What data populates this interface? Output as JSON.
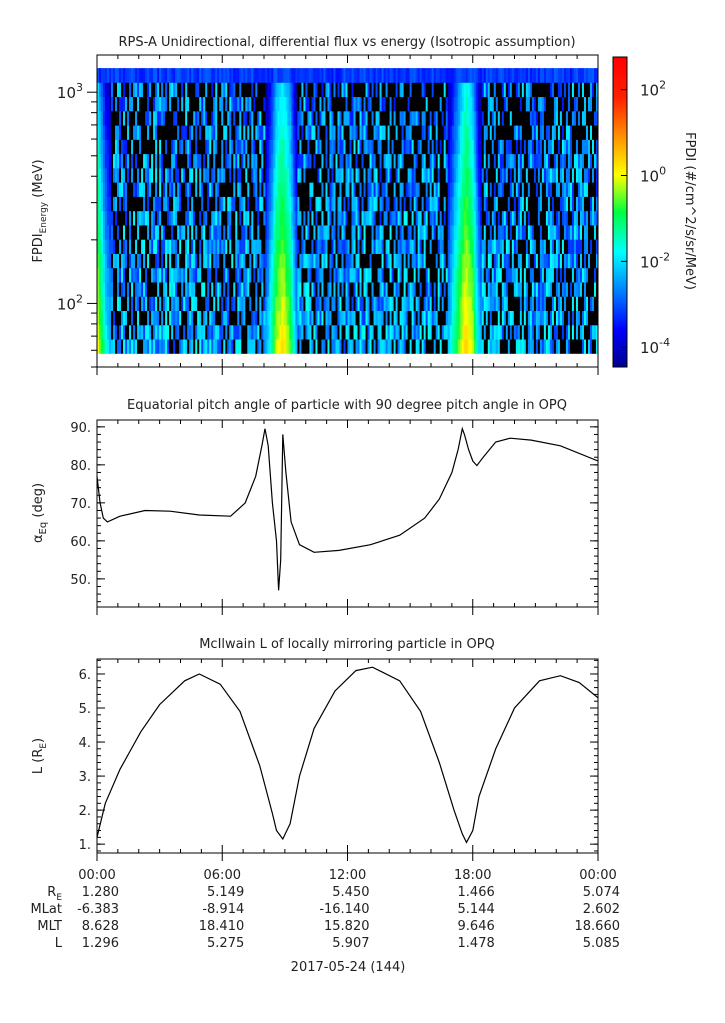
{
  "chart_data": [
    {
      "type": "heatmap",
      "title": "RPS-A Unidirectional, differential flux vs energy (Isotropic assumption)",
      "ylabel_main": "FPDI",
      "ylabel_sub": "Energy",
      "ylabel_unit": "(MeV)",
      "yscale": "log",
      "ylim": [
        50,
        1500
      ],
      "yticks": [
        {
          "value": 100,
          "base": "10",
          "exp": "2"
        },
        {
          "value": 1000,
          "base": "10",
          "exp": "3"
        }
      ],
      "energy_range": [
        58,
        1300
      ],
      "xlim": [
        0,
        24
      ],
      "colorbar": {
        "label": "FPDI (#/cm^2/s/sr/MeV)",
        "log_range": [
          -4.46,
          2.76
        ],
        "ticks": [
          {
            "base": "10",
            "exp": "2",
            "log": 2
          },
          {
            "base": "10",
            "exp": "0",
            "log": 0
          },
          {
            "base": "10",
            "exp": "-2",
            "log": -2
          },
          {
            "base": "10",
            "exp": "-4",
            "log": -4
          }
        ]
      }
    },
    {
      "type": "line",
      "title": "Equatorial pitch angle of particle with 90 degree pitch angle in OPQ",
      "ylabel_main": "α",
      "ylabel_sub": "Eq",
      "ylabel_unit": "(deg)",
      "xlim": [
        0,
        24
      ],
      "ylim": [
        42.6,
        91.8
      ],
      "yticks": [
        {
          "value": 50,
          "label": "50."
        },
        {
          "value": 60,
          "label": "60."
        },
        {
          "value": 70,
          "label": "70."
        },
        {
          "value": 80,
          "label": "80."
        },
        {
          "value": 90,
          "label": "90."
        }
      ],
      "x": [
        0,
        0.15,
        0.3,
        0.5,
        1.1,
        2.3,
        3.5,
        4.9,
        6.4,
        7.1,
        7.6,
        7.9,
        8.05,
        8.2,
        8.4,
        8.6,
        8.7,
        8.8,
        8.9,
        9.05,
        9.3,
        9.7,
        10.4,
        11.6,
        13.1,
        14.5,
        15.7,
        16.4,
        17.0,
        17.3,
        17.5,
        17.6,
        17.8,
        18.0,
        18.2,
        18.5,
        19.1,
        19.8,
        20.8,
        22.2,
        24
      ],
      "y": [
        77,
        70,
        66,
        65,
        66.5,
        68,
        67.8,
        66.8,
        66.5,
        70,
        77,
        85,
        89.5,
        85,
        70,
        60,
        47,
        55,
        88,
        78,
        65,
        59,
        57,
        57.5,
        59,
        61.5,
        66,
        71,
        78,
        84,
        89.5,
        88,
        84,
        81,
        79.8,
        82,
        86,
        87,
        86.5,
        85,
        81
      ]
    },
    {
      "type": "line",
      "title": "McIlwain L of locally mirroring particle in OPQ",
      "ylabel_main": "L (R",
      "ylabel_sub": "E",
      "ylabel_unit": ")",
      "xlim": [
        0,
        24
      ],
      "ylim": [
        0.74,
        6.44
      ],
      "yticks": [
        {
          "value": 1,
          "label": "1."
        },
        {
          "value": 2,
          "label": "2."
        },
        {
          "value": 3,
          "label": "3."
        },
        {
          "value": 4,
          "label": "4."
        },
        {
          "value": 5,
          "label": "5."
        },
        {
          "value": 6,
          "label": "6."
        }
      ],
      "x": [
        0,
        0.4,
        1.1,
        2.1,
        3.0,
        4.2,
        4.9,
        5.9,
        6.85,
        7.8,
        8.4,
        8.6,
        8.9,
        9.25,
        9.7,
        10.4,
        11.4,
        12.4,
        13.2,
        14.5,
        15.5,
        16.4,
        17.1,
        17.5,
        17.7,
        18.0,
        18.3,
        19.1,
        20.0,
        21.2,
        22.2,
        23.1,
        24
      ],
      "y": [
        1.2,
        2.2,
        3.2,
        4.3,
        5.1,
        5.8,
        6.0,
        5.7,
        4.9,
        3.3,
        1.9,
        1.4,
        1.15,
        1.6,
        3.0,
        4.4,
        5.5,
        6.1,
        6.2,
        5.8,
        4.9,
        3.4,
        2.0,
        1.3,
        1.05,
        1.4,
        2.4,
        3.8,
        5.0,
        5.8,
        5.95,
        5.75,
        5.3
      ]
    }
  ],
  "x_axis": {
    "tick_labels": [
      "00:00",
      "06:00",
      "12:00",
      "18:00",
      "00:00"
    ],
    "date_label": "2017-05-24 (144)"
  },
  "ephemeris": [
    {
      "label": "R",
      "sub": "E",
      "values": [
        "1.280",
        "5.149",
        "5.450",
        "1.466",
        "5.074"
      ]
    },
    {
      "label": "MLat",
      "sub": "",
      "values": [
        "-6.383",
        "-8.914",
        "-16.140",
        "5.144",
        "2.602"
      ]
    },
    {
      "label": "MLT",
      "sub": "",
      "values": [
        "8.628",
        "18.410",
        "15.820",
        "9.646",
        "18.660"
      ]
    },
    {
      "label": "L",
      "sub": "",
      "values": [
        "1.296",
        "5.275",
        "5.907",
        "1.478",
        "5.085"
      ]
    }
  ]
}
